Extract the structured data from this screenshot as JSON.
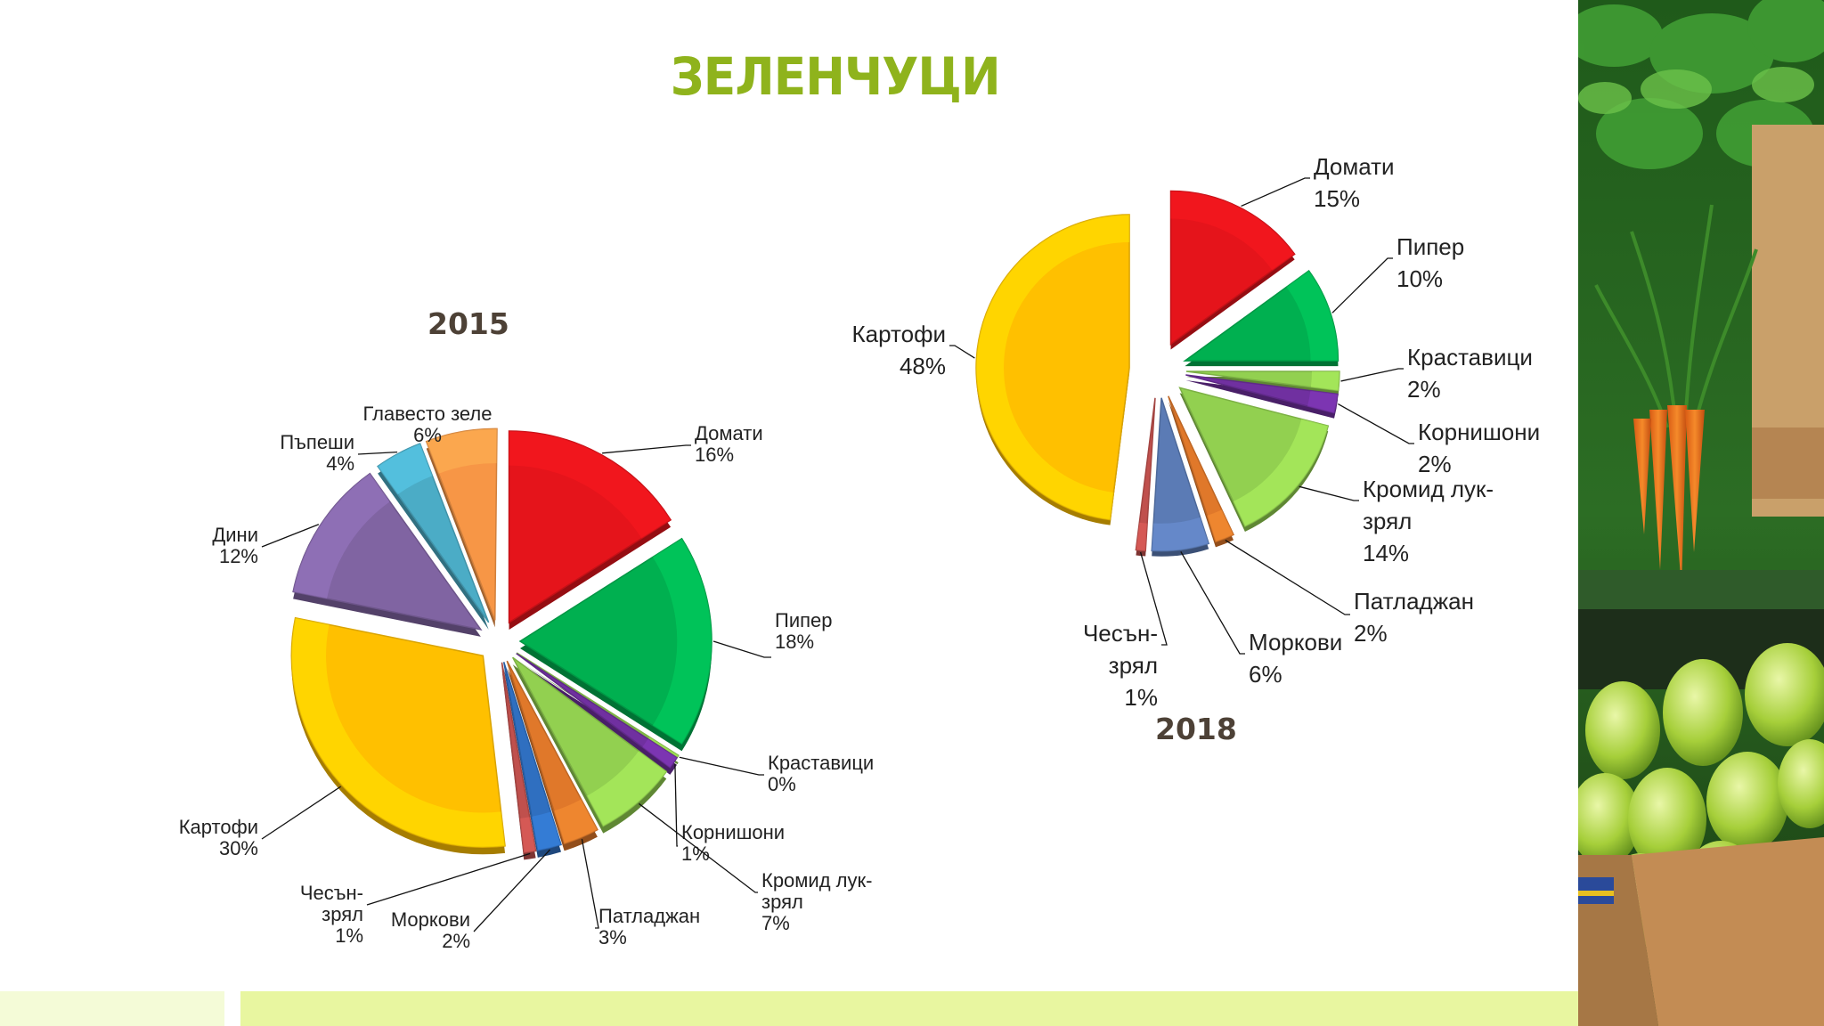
{
  "slide": {
    "title": "ЗЕЛЕНЧУЦИ"
  },
  "chart_data": [
    {
      "type": "pie",
      "title": "2015",
      "slices": [
        {
          "label": "Домати",
          "value": 16,
          "color": "#e5141b"
        },
        {
          "label": "Пипер",
          "value": 18,
          "color": "#00b050"
        },
        {
          "label": "Краставици",
          "value": 0,
          "color": "#92d050"
        },
        {
          "label": "Корнишони",
          "value": 1,
          "color": "#7030a0"
        },
        {
          "label": "Кромид лук-зрял",
          "value": 7,
          "color": "#92d050"
        },
        {
          "label": "Патладжан",
          "value": 3,
          "color": "#e0782a"
        },
        {
          "label": "Моркови",
          "value": 2,
          "color": "#2f6fc0"
        },
        {
          "label": "Чесън-зрял",
          "value": 1,
          "color": "#c0504d"
        },
        {
          "label": "Картофи",
          "value": 30,
          "color": "#ffc000"
        },
        {
          "label": "Дини",
          "value": 12,
          "color": "#8064a2"
        },
        {
          "label": "Пъпеши",
          "value": 4,
          "color": "#4bacc6"
        },
        {
          "label": "Главесто зеле",
          "value": 6,
          "color": "#f79646"
        }
      ]
    },
    {
      "type": "pie",
      "title": "2018",
      "slices": [
        {
          "label": "Домати",
          "value": 15,
          "color": "#e5141b"
        },
        {
          "label": "Пипер",
          "value": 10,
          "color": "#00b050"
        },
        {
          "label": "Краставици",
          "value": 2,
          "color": "#92d050"
        },
        {
          "label": "Корнишони",
          "value": 2,
          "color": "#7030a0"
        },
        {
          "label": "Кромид лук-зрял",
          "value": 14,
          "color": "#92d050"
        },
        {
          "label": "Патладжан",
          "value": 2,
          "color": "#e0782a"
        },
        {
          "label": "Моркови",
          "value": 6,
          "color": "#5b7bb5"
        },
        {
          "label": "Чесън-зрял",
          "value": 1,
          "color": "#c0504d"
        },
        {
          "label": "Картофи",
          "value": 48,
          "color": "#ffc000"
        }
      ]
    }
  ]
}
